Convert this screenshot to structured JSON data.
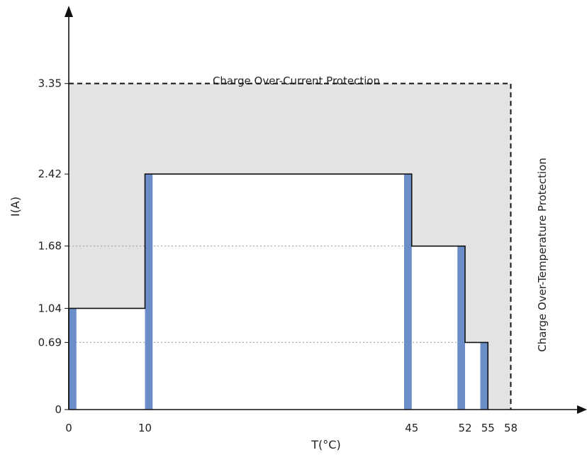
{
  "chart_data": {
    "type": "line",
    "xlabel": "T(°C)",
    "ylabel": "I(A)",
    "x_ticks": [
      0,
      10,
      45,
      52,
      55,
      58
    ],
    "x_tick_labels": [
      "0",
      "10",
      "45",
      "52",
      "55",
      "58"
    ],
    "y_ticks": [
      0,
      0.69,
      1.04,
      1.68,
      2.42,
      3.35
    ],
    "y_tick_labels": [
      "0",
      "0.69",
      "1.04",
      "1.68",
      "2.42",
      "3.35"
    ],
    "xlim": [
      0,
      68
    ],
    "ylim": [
      0,
      4.15
    ],
    "grid": "dotted lines at y = 0.69, 1.04, 1.68, 2.42",
    "series": [
      {
        "x": [
          0,
          0,
          10,
          10,
          45,
          45,
          52,
          52,
          55,
          55
        ],
        "y": [
          0,
          1.04,
          1.04,
          2.42,
          2.42,
          1.68,
          1.68,
          0.69,
          0.69,
          0
        ]
      }
    ],
    "threshold_boundary": {
      "current_limit_a": 3.35,
      "temperature_limit_c": 58
    },
    "threshold_bands": [
      {
        "x_from": 0,
        "x_to": 1
      },
      {
        "x_from": 10,
        "x_to": 11
      },
      {
        "x_from": 44,
        "x_to": 45
      },
      {
        "x_from": 51,
        "x_to": 52
      },
      {
        "x_from": 54,
        "x_to": 55
      }
    ],
    "annotations": {
      "current_protection": "Charge Over-Current Protection",
      "temperature_protection": "Charge Over-Temperature Protection"
    },
    "colors": {
      "protection_fill": "#e3e3e3",
      "operating_fill": "#ffffff",
      "band": "#6b8ec9",
      "outline": "#111111",
      "grid": "#9a9a9a"
    }
  }
}
